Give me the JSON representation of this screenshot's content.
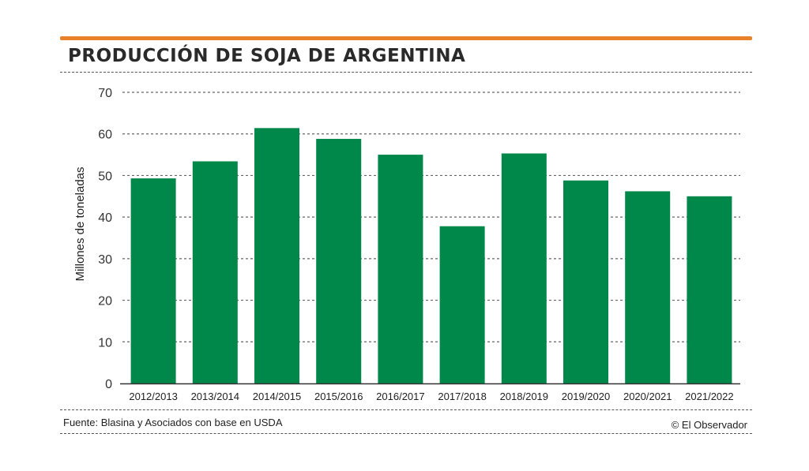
{
  "header": {
    "title": "PRODUCCIÓN DE SOJA DE ARGENTINA"
  },
  "footer": {
    "source": "Fuente: Blasina y Asociados con base en USDA",
    "credit": "© El Observador"
  },
  "colors": {
    "accent": "#e8822a",
    "bar": "#00874a",
    "text": "#2a2a2a",
    "grid": "#666666"
  },
  "chart_data": {
    "type": "bar",
    "title": "PRODUCCIÓN DE SOJA DE ARGENTINA",
    "xlabel": "",
    "ylabel": "Millones de toneladas",
    "ylim": [
      0,
      70
    ],
    "yticks": [
      0,
      10,
      20,
      30,
      40,
      50,
      60,
      70
    ],
    "grid": true,
    "categories": [
      "2012/2013",
      "2013/2014",
      "2014/2015",
      "2015/2016",
      "2016/2017",
      "2017/2018",
      "2018/2019",
      "2019/2020",
      "2020/2021",
      "2021/2022"
    ],
    "values": [
      49.3,
      53.4,
      61.4,
      58.8,
      55.0,
      37.8,
      55.3,
      48.8,
      46.2,
      45.0
    ]
  }
}
